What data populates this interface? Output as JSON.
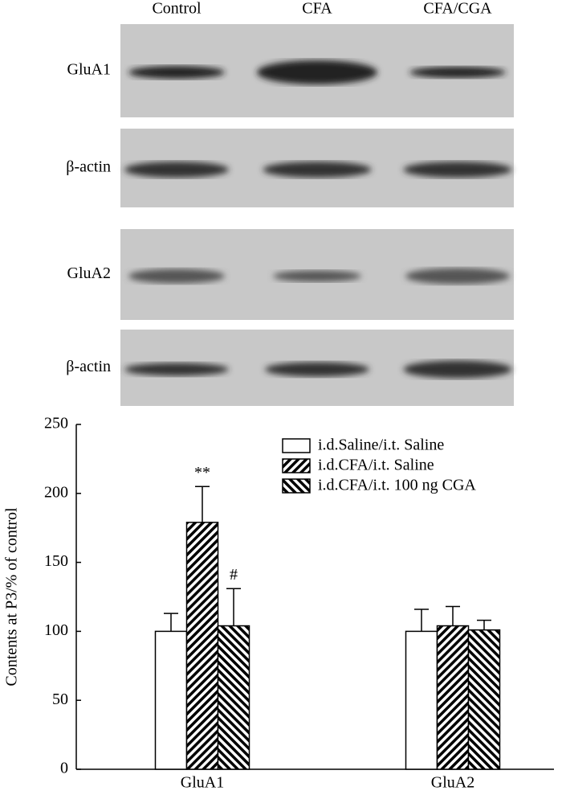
{
  "blot": {
    "columns": [
      "Control",
      "CFA",
      "CFA/CGA"
    ],
    "rows": [
      "GluA1",
      "β-actin",
      "GluA2",
      "β-actin"
    ]
  },
  "chart_data": {
    "type": "bar",
    "ylabel": "Contents at P3/% of control",
    "categories": [
      "GluA1",
      "GluA2"
    ],
    "series": [
      {
        "name": "i.d.Saline/i.t. Saline",
        "color": "#000000",
        "hatch": "none",
        "values": [
          100,
          100
        ],
        "errors": [
          13,
          16
        ]
      },
      {
        "name": "i.d.CFA/i.t. Saline",
        "color": "#000000",
        "hatch": "forward",
        "values": [
          179,
          104
        ],
        "errors": [
          26,
          14
        ]
      },
      {
        "name": "i.d.CFA/i.t. 100 ng CGA",
        "color": "#000000",
        "hatch": "backward",
        "values": [
          104,
          101
        ],
        "errors": [
          27,
          7
        ]
      }
    ],
    "annotations": [
      "**",
      "#"
    ],
    "ylim": [
      0,
      250
    ],
    "yticks": [
      0,
      50,
      100,
      150,
      200,
      250
    ],
    "grid": false,
    "legend": "top-right"
  }
}
